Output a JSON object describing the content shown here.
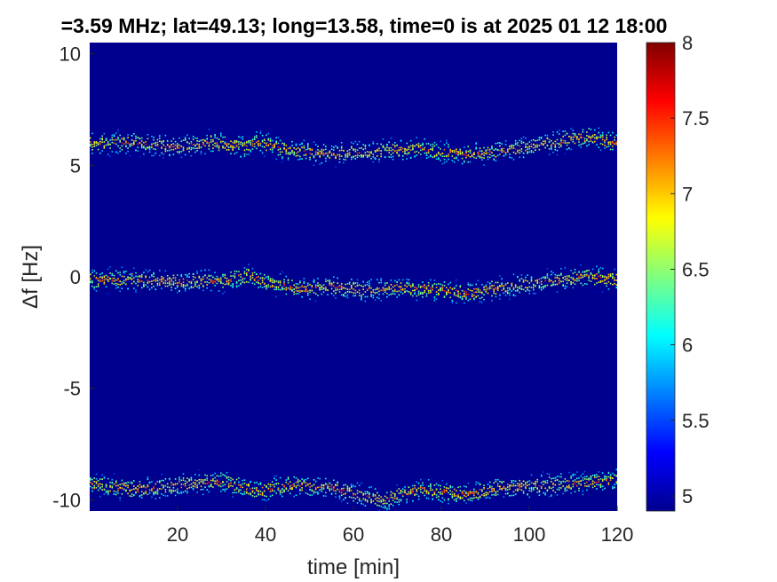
{
  "chart_data": {
    "type": "heatmap",
    "title": "=3.59 MHz;  lat=49.13; long=13.58, time=0 is at 2025 01 12 18:00",
    "xlabel": "time [min]",
    "ylabel": "Δf [Hz]",
    "xlim": [
      0,
      120
    ],
    "ylim": [
      -10.5,
      10.5
    ],
    "x_ticks": [
      "20",
      "40",
      "60",
      "80",
      "100",
      "120"
    ],
    "y_ticks": [
      "10",
      "5",
      "0",
      "-5",
      "-10"
    ],
    "colorbar": {
      "colormap": "jet",
      "range": [
        4.9,
        8
      ],
      "ticks": [
        "8",
        "7.5",
        "7",
        "6.5",
        "6",
        "5.5",
        "5"
      ]
    },
    "background_value": 4.9,
    "series": [
      {
        "t": [
          0,
          10,
          20,
          27,
          35,
          38,
          45,
          55,
          65,
          75,
          85,
          95,
          105,
          113,
          120
        ],
        "df": [
          6.0,
          6.05,
          5.85,
          6.05,
          5.85,
          6.1,
          5.7,
          5.55,
          5.65,
          5.8,
          5.5,
          5.7,
          6.05,
          6.3,
          6.0
        ]
      },
      {
        "t": [
          0,
          10,
          20,
          30,
          36,
          40,
          48,
          55,
          63,
          70,
          80,
          86,
          95,
          105,
          113,
          120
        ],
        "df": [
          -0.1,
          -0.1,
          -0.2,
          -0.15,
          0.1,
          -0.2,
          -0.5,
          -0.4,
          -0.6,
          -0.45,
          -0.55,
          -0.7,
          -0.4,
          -0.15,
          0.05,
          -0.1
        ]
      },
      {
        "t": [
          0,
          10,
          20,
          30,
          38,
          45,
          55,
          60,
          67,
          75,
          85,
          95,
          105,
          113,
          120
        ],
        "df": [
          -9.3,
          -9.5,
          -9.3,
          -9.15,
          -9.6,
          -9.3,
          -9.4,
          -9.7,
          -10.0,
          -9.5,
          -9.7,
          -9.4,
          -9.3,
          -9.2,
          -9.05
        ]
      }
    ]
  }
}
